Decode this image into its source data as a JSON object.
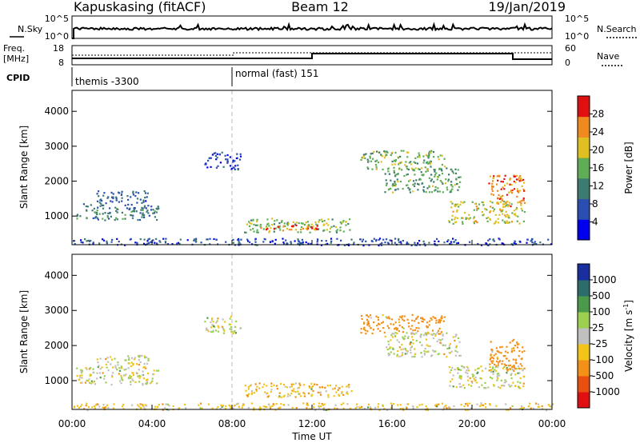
{
  "header": {
    "station": "Kapuskasing (fitACF)",
    "beam": "Beam 12",
    "date": "19/Jan/2019"
  },
  "nsky_panel": {
    "left_label": "N.Sky",
    "right_label": "N.Search",
    "left_ticks": [
      "10^5",
      "10^0"
    ],
    "right_ticks": [
      "10^5",
      "10^0"
    ]
  },
  "freq_panel": {
    "left_label_line1": "Freq.",
    "left_label_line2": "[MHz]",
    "right_label": "Nave",
    "left_ticks": [
      "18",
      "8"
    ],
    "right_ticks": [
      "60",
      "0"
    ]
  },
  "cpid": {
    "label": "CPID",
    "modes": [
      {
        "name": "themis -3300",
        "start_hour": 0
      },
      {
        "name": "normal (fast) 151",
        "start_hour": 8
      }
    ]
  },
  "x_axis": {
    "label": "Time UT",
    "ticks": [
      "00:00",
      "04:00",
      "08:00",
      "12:00",
      "16:00",
      "20:00",
      "00:00"
    ],
    "range_hours": [
      0,
      24
    ]
  },
  "y_axis": {
    "label": "Slant Range [km]",
    "ticks": [
      "1000",
      "2000",
      "3000",
      "4000"
    ],
    "range_km": [
      180,
      4600
    ]
  },
  "power_colorbar": {
    "label": "Power [dB]",
    "ticks": [
      "4",
      "8",
      "12",
      "16",
      "20",
      "24",
      "28"
    ],
    "colors": [
      "#0000ee",
      "#2a4fb0",
      "#3d7a70",
      "#5fae55",
      "#e0c020",
      "#f08a20",
      "#e01010"
    ]
  },
  "velocity_colorbar": {
    "label": "Velocity [m s",
    "label_sup": "-1",
    "label_close": "]",
    "ticks": [
      "1000",
      "500",
      "100",
      "25",
      "-25",
      "-100",
      "-500",
      "-1000"
    ],
    "colors": [
      "#1a2ea0",
      "#2c6d6b",
      "#4a9a4a",
      "#9ed04f",
      "#c0c0c0",
      "#f2c418",
      "#f29018",
      "#e85010",
      "#e01010"
    ]
  },
  "chart_data": [
    {
      "type": "heatmap",
      "title": "Power",
      "xlabel": "Time UT",
      "ylabel": "Slant Range [km]",
      "x_range_hours": [
        0,
        24
      ],
      "y_range_km": [
        180,
        4600
      ],
      "colorbar": "Power [dB]",
      "colorbar_range": [
        0,
        30
      ],
      "regions": [
        {
          "t0": 0.2,
          "t1": 4.3,
          "r0": 900,
          "r1": 1400,
          "value": 10
        },
        {
          "t0": 1.2,
          "t1": 3.8,
          "r0": 1400,
          "r1": 1750,
          "value": 8
        },
        {
          "t0": 6.6,
          "t1": 8.4,
          "r0": 2350,
          "r1": 2850,
          "value": 5
        },
        {
          "t0": 8.6,
          "t1": 14.0,
          "r0": 550,
          "r1": 950,
          "value": 16
        },
        {
          "t0": 9.4,
          "t1": 12.4,
          "r0": 600,
          "r1": 760,
          "value": 27
        },
        {
          "t0": 14.4,
          "t1": 18.6,
          "r0": 2350,
          "r1": 2900,
          "value": 15
        },
        {
          "t0": 15.6,
          "t1": 19.4,
          "r0": 1700,
          "r1": 2400,
          "value": 14
        },
        {
          "t0": 18.8,
          "t1": 22.6,
          "r0": 800,
          "r1": 1450,
          "value": 18
        },
        {
          "t0": 20.8,
          "t1": 22.6,
          "r0": 1300,
          "r1": 2200,
          "value": 24
        },
        {
          "t0": 0.0,
          "t1": 24.0,
          "r0": 180,
          "r1": 380,
          "value": 6
        }
      ]
    },
    {
      "type": "heatmap",
      "title": "Velocity",
      "xlabel": "Time UT",
      "ylabel": "Slant Range [km]",
      "x_range_hours": [
        0,
        24
      ],
      "y_range_km": [
        180,
        4600
      ],
      "colorbar": "Velocity [m s-1]",
      "colorbar_range": [
        -1000,
        1000
      ],
      "regions": [
        {
          "t0": 0.2,
          "t1": 4.3,
          "r0": 900,
          "r1": 1400,
          "value": 0
        },
        {
          "t0": 1.2,
          "t1": 3.8,
          "r0": 1400,
          "r1": 1750,
          "value": 0
        },
        {
          "t0": 6.6,
          "t1": 8.4,
          "r0": 2350,
          "r1": 2850,
          "value": 0
        },
        {
          "t0": 8.6,
          "t1": 14.0,
          "r0": 550,
          "r1": 950,
          "value": -60
        },
        {
          "t0": 14.4,
          "t1": 18.6,
          "r0": 2350,
          "r1": 2900,
          "value": -200
        },
        {
          "t0": 15.6,
          "t1": 19.4,
          "r0": 1700,
          "r1": 2400,
          "value": 0
        },
        {
          "t0": 18.8,
          "t1": 22.6,
          "r0": 800,
          "r1": 1450,
          "value": 0
        },
        {
          "t0": 20.8,
          "t1": 22.6,
          "r0": 1300,
          "r1": 2200,
          "value": -200
        },
        {
          "t0": 0.0,
          "t1": 24.0,
          "r0": 180,
          "r1": 380,
          "value": -60
        }
      ]
    }
  ]
}
